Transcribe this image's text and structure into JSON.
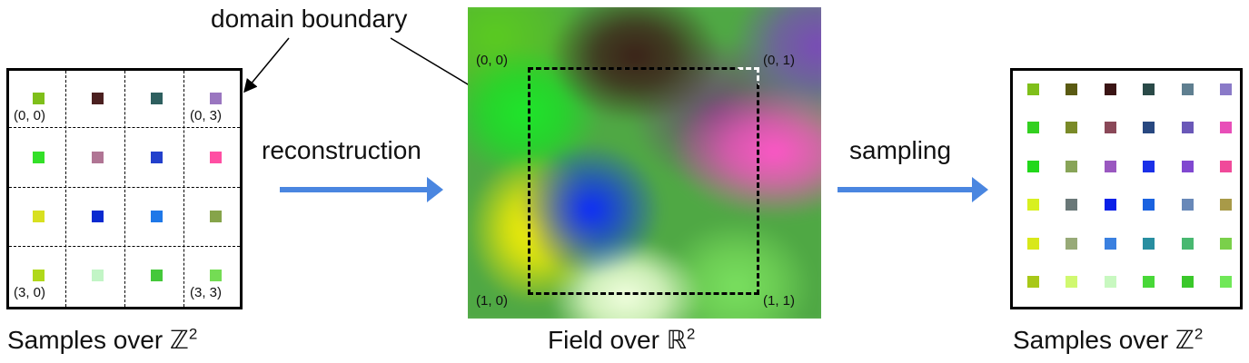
{
  "left_panel": {
    "caption_prefix": "Samples over ",
    "caption_symbol": "ℤ",
    "caption_exp": "2",
    "label_top_left": "(0, 0)",
    "label_top_right": "(0, 3)",
    "label_bottom_left": "(3, 0)",
    "label_bottom_right": "(3, 3)",
    "samples": [
      [
        "#7fbf1a",
        "#4b2020",
        "#2e5f5f",
        "#9a76c0"
      ],
      [
        "#33e028",
        "#b07594",
        "#2240cc",
        "#ff4fa3"
      ],
      [
        "#d8e020",
        "#0a2ad0",
        "#1f78e8",
        "#86a44a"
      ],
      [
        "#b0d81a",
        "#c2f5c6",
        "#44c83a",
        "#74dc54"
      ]
    ]
  },
  "arrows": {
    "reconstruction_label": "reconstruction",
    "sampling_label": "sampling",
    "color": "#4a86e0"
  },
  "field_panel": {
    "annotation": "domain boundary",
    "caption_prefix": "Field over ",
    "caption_symbol": "ℝ",
    "caption_exp": "2",
    "corner_top_left": "(0, 0)",
    "corner_top_right": "(0, 1)",
    "corner_bottom_left": "(1, 0)",
    "corner_bottom_right": "(1, 1)"
  },
  "right_panel": {
    "caption_prefix": "Samples over ",
    "caption_symbol": "ℤ",
    "caption_exp": "2",
    "samples": [
      [
        "#7fbf1a",
        "#5a5a12",
        "#3a1414",
        "#2a4a48",
        "#5f7f90",
        "#8a7ac8"
      ],
      [
        "#33d020",
        "#7a8a28",
        "#8a4858",
        "#284880",
        "#6a58b8",
        "#e84eb8"
      ],
      [
        "#22d81a",
        "#88a458",
        "#9a58c0",
        "#1a30e8",
        "#8048d0",
        "#f04a9a"
      ],
      [
        "#d8f020",
        "#6a7878",
        "#0a20e8",
        "#1a62e0",
        "#6888b8",
        "#a89a48"
      ],
      [
        "#d8e81a",
        "#98aa78",
        "#3a80e0",
        "#288ea0",
        "#48b870",
        "#7ad04a"
      ],
      [
        "#a8c818",
        "#d0f870",
        "#c8f8c0",
        "#48d838",
        "#3ac82a",
        "#70e858"
      ]
    ]
  }
}
